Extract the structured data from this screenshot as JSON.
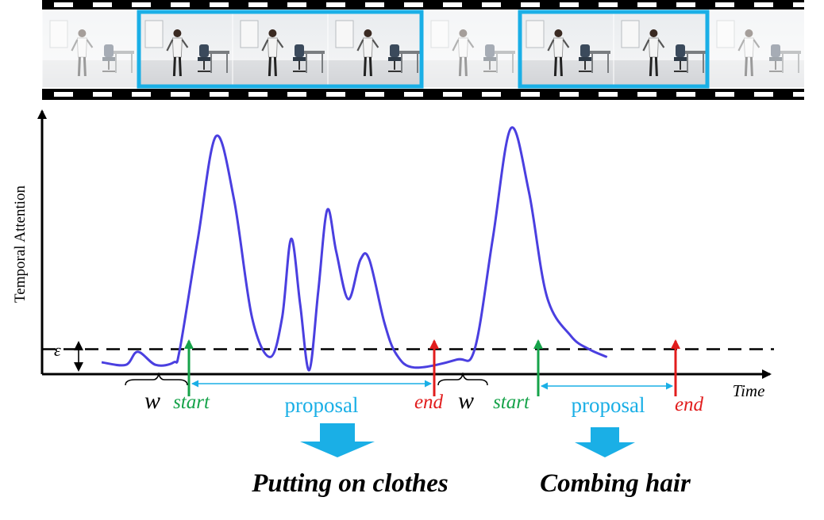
{
  "filmstrip": {
    "frame_count": 8,
    "highlighted_segments": [
      {
        "name": "putting-on-clothes",
        "first_frame": 2,
        "last_frame": 4
      },
      {
        "name": "combing-hair",
        "first_frame": 6,
        "last_frame": 7
      }
    ],
    "colors": {
      "highlight": "#1AAFE6",
      "strip": "#000000",
      "hole": "#ffffff"
    }
  },
  "axes": {
    "ylabel": "Temporal Attention",
    "xlabel": "Time",
    "threshold_symbol": "ε"
  },
  "curve": {
    "color": "#4A3FE0",
    "threshold": 0.08,
    "points": [
      [
        0.0,
        0.03
      ],
      [
        0.04,
        0.02
      ],
      [
        0.06,
        0.07
      ],
      [
        0.09,
        0.02
      ],
      [
        0.12,
        0.03
      ],
      [
        0.13,
        0.08
      ],
      [
        0.16,
        0.5
      ],
      [
        0.19,
        0.89
      ],
      [
        0.22,
        0.65
      ],
      [
        0.25,
        0.2
      ],
      [
        0.28,
        0.05
      ],
      [
        0.3,
        0.2
      ],
      [
        0.315,
        0.5
      ],
      [
        0.33,
        0.25
      ],
      [
        0.345,
        0.0
      ],
      [
        0.36,
        0.3
      ],
      [
        0.375,
        0.61
      ],
      [
        0.39,
        0.45
      ],
      [
        0.41,
        0.27
      ],
      [
        0.43,
        0.42
      ],
      [
        0.445,
        0.42
      ],
      [
        0.47,
        0.18
      ],
      [
        0.49,
        0.06
      ],
      [
        0.52,
        0.01
      ],
      [
        0.59,
        0.04
      ],
      [
        0.62,
        0.08
      ],
      [
        0.65,
        0.5
      ],
      [
        0.68,
        0.92
      ],
      [
        0.71,
        0.68
      ],
      [
        0.74,
        0.28
      ],
      [
        0.78,
        0.13
      ],
      [
        0.81,
        0.08
      ],
      [
        0.84,
        0.05
      ]
    ]
  },
  "proposals": [
    {
      "start_label": "start",
      "end_label": "end",
      "proposal_label": "proposal",
      "window_label": "w",
      "start": 0.13,
      "end": 0.49,
      "action": "Putting on clothes"
    },
    {
      "start_label": "start",
      "end_label": "end",
      "proposal_label": "proposal",
      "window_label": "w",
      "start": 0.62,
      "end": 0.81,
      "action": "Combing hair"
    }
  ],
  "colors": {
    "start": "#16A34A",
    "end": "#E11D1D",
    "proposal": "#1AAFE6",
    "axis": "#000000",
    "threshold_line": "#000000"
  }
}
